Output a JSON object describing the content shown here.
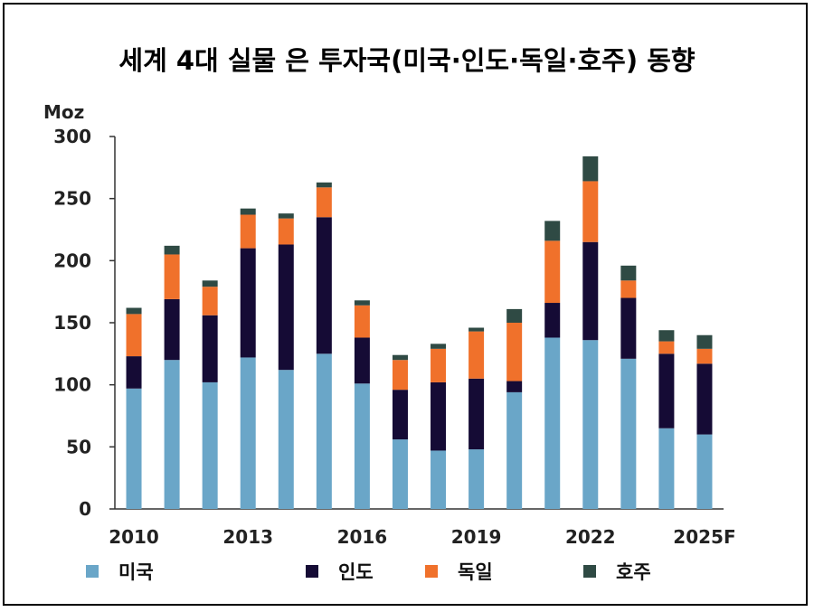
{
  "chart_data": {
    "type": "bar",
    "stacked": true,
    "title": "세계 4대 실물 은 투자국(미국·인도·독일·호주) 동향",
    "ylabel": "Moz",
    "xlabel": "",
    "ylim": [
      0,
      300
    ],
    "yticks": [
      0,
      50,
      100,
      150,
      200,
      250,
      300
    ],
    "categories": [
      "2010",
      "2011",
      "2012",
      "2013",
      "2014",
      "2015",
      "2016",
      "2017",
      "2018",
      "2019",
      "2020",
      "2021",
      "2022",
      "2023",
      "2024",
      "2025F"
    ],
    "xtick_labels": [
      "2010",
      "",
      "",
      "2013",
      "",
      "",
      "2016",
      "",
      "",
      "2019",
      "",
      "",
      "2022",
      "",
      "",
      "2025F"
    ],
    "legend_position": "bottom",
    "series": [
      {
        "name": "미국",
        "color": "#6aa6c8",
        "values": [
          97,
          120,
          102,
          122,
          112,
          125,
          101,
          56,
          47,
          48,
          94,
          138,
          136,
          121,
          65,
          60
        ]
      },
      {
        "name": "인도",
        "color": "#150b35",
        "values": [
          26,
          49,
          54,
          88,
          101,
          110,
          37,
          40,
          55,
          57,
          9,
          28,
          79,
          49,
          60,
          57
        ]
      },
      {
        "name": "독일",
        "color": "#f0712b",
        "values": [
          34,
          36,
          23,
          27,
          21,
          24,
          26,
          24,
          27,
          38,
          47,
          50,
          49,
          14,
          10,
          12
        ]
      },
      {
        "name": "호주",
        "color": "#2f4a44",
        "values": [
          5,
          7,
          5,
          5,
          4,
          4,
          4,
          4,
          4,
          3,
          11,
          16,
          20,
          12,
          9,
          11
        ]
      }
    ]
  }
}
